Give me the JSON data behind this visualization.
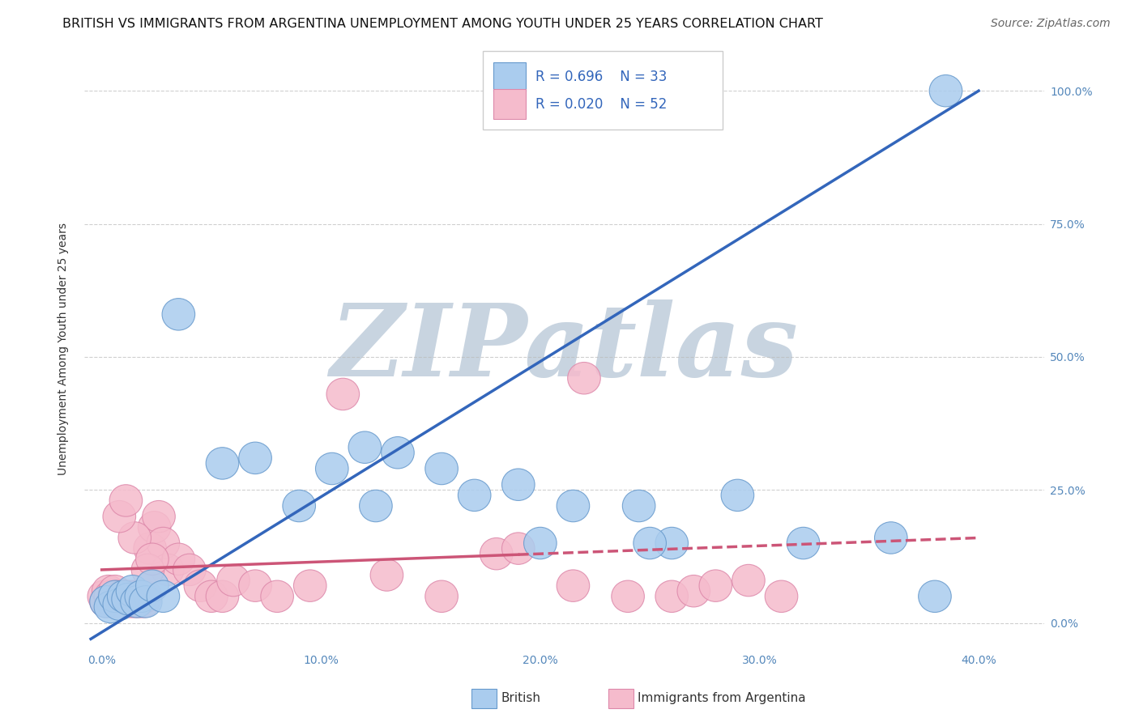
{
  "title": "BRITISH VS IMMIGRANTS FROM ARGENTINA UNEMPLOYMENT AMONG YOUTH UNDER 25 YEARS CORRELATION CHART",
  "source": "Source: ZipAtlas.com",
  "ylabel": "Unemployment Among Youth under 25 years",
  "xlim": [
    -0.8,
    43.0
  ],
  "ylim": [
    -5.0,
    108.0
  ],
  "xlabel_vals": [
    0.0,
    10.0,
    20.0,
    30.0,
    40.0
  ],
  "xlabel_labels": [
    "0.0%",
    "10.0%",
    "20.0%",
    "30.0%",
    "40.0%"
  ],
  "ylabel_vals": [
    0.0,
    25.0,
    50.0,
    75.0,
    100.0
  ],
  "ylabel_labels": [
    "0.0%",
    "25.0%",
    "50.0%",
    "75.0%",
    "100.0%"
  ],
  "blue_color": "#AACCEE",
  "blue_edge_color": "#6699CC",
  "blue_line_color": "#3366BB",
  "pink_color": "#F5BBCC",
  "pink_edge_color": "#DD88AA",
  "pink_line_color": "#CC5577",
  "grid_color": "#BBBBBB",
  "blue_R": "R = 0.696",
  "blue_N": "N = 33",
  "pink_R": "R = 0.020",
  "pink_N": "N = 52",
  "blue_label": "British",
  "pink_label": "Immigrants from Argentina",
  "watermark": "ZIPatlas",
  "watermark_color": "#C8D4E0",
  "blue_points_x": [
    0.2,
    0.4,
    0.6,
    0.8,
    1.0,
    1.2,
    1.4,
    1.6,
    1.8,
    2.0,
    2.3,
    2.8,
    3.5,
    5.5,
    7.0,
    9.0,
    10.5,
    12.0,
    13.5,
    15.5,
    17.0,
    19.0,
    20.0,
    21.5,
    24.5,
    26.0,
    29.0,
    32.0,
    36.0,
    38.0,
    25.0,
    12.5,
    38.5
  ],
  "blue_points_y": [
    4.0,
    3.0,
    5.0,
    3.5,
    5.0,
    4.5,
    6.0,
    4.0,
    5.0,
    4.0,
    7.0,
    5.0,
    58.0,
    30.0,
    31.0,
    22.0,
    29.0,
    33.0,
    32.0,
    29.0,
    24.0,
    26.0,
    15.0,
    22.0,
    22.0,
    15.0,
    24.0,
    15.0,
    16.0,
    5.0,
    15.0,
    22.0,
    100.0
  ],
  "pink_points_x": [
    0.1,
    0.2,
    0.3,
    0.4,
    0.5,
    0.6,
    0.7,
    0.8,
    0.9,
    1.0,
    1.1,
    1.2,
    1.3,
    1.4,
    1.5,
    1.6,
    1.7,
    1.8,
    1.9,
    2.0,
    2.2,
    2.4,
    2.6,
    2.8,
    3.0,
    3.5,
    4.0,
    4.5,
    5.0,
    5.5,
    6.0,
    7.0,
    8.0,
    9.5,
    11.0,
    13.0,
    15.5,
    18.0,
    19.0,
    21.5,
    22.0,
    24.0,
    26.0,
    27.0,
    28.0,
    29.5,
    31.0,
    1.5,
    2.1,
    2.3,
    0.8,
    1.1
  ],
  "pink_points_y": [
    5.0,
    4.0,
    6.0,
    5.0,
    4.0,
    6.0,
    5.0,
    4.0,
    5.0,
    5.0,
    5.0,
    5.0,
    4.0,
    5.0,
    4.0,
    5.0,
    4.0,
    5.0,
    4.0,
    5.0,
    14.0,
    18.0,
    20.0,
    15.0,
    10.0,
    12.0,
    10.0,
    7.0,
    5.0,
    5.0,
    8.0,
    7.0,
    5.0,
    7.0,
    43.0,
    9.0,
    5.0,
    13.0,
    14.0,
    7.0,
    46.0,
    5.0,
    5.0,
    6.0,
    7.0,
    8.0,
    5.0,
    16.0,
    10.0,
    12.0,
    20.0,
    23.0
  ],
  "blue_trend_x0": -0.5,
  "blue_trend_x1": 40.0,
  "blue_trend_y0": -3.0,
  "blue_trend_y1": 100.0,
  "pink_trend_x0": 0.0,
  "pink_trend_x1": 40.0,
  "pink_trend_y0": 10.0,
  "pink_trend_y1": 16.0,
  "pink_solid_x1": 19.0,
  "title_fontsize": 11.5,
  "tick_fontsize": 10,
  "legend_fontsize": 12,
  "source_fontsize": 10
}
